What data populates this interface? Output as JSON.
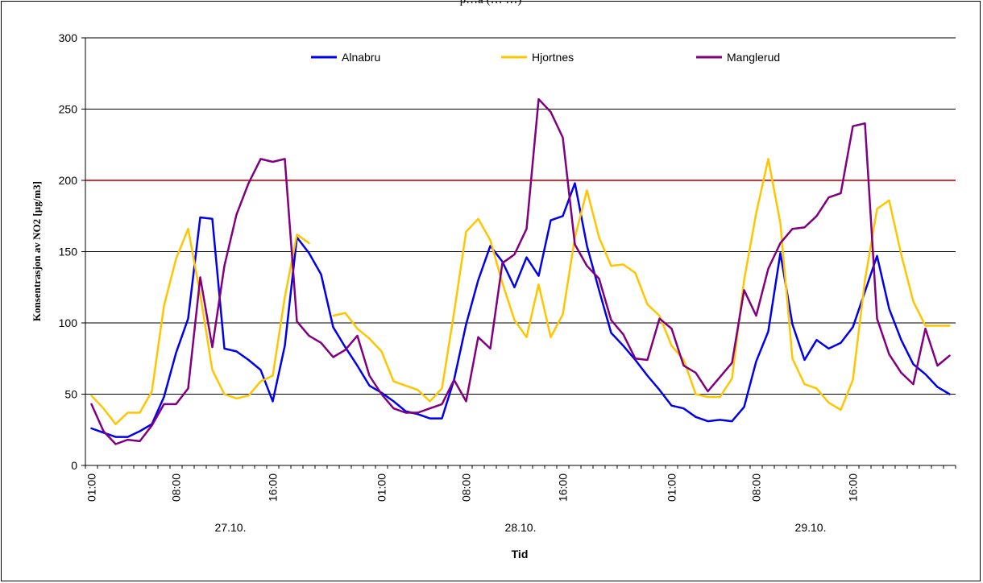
{
  "header": {
    "title_fragment": "p…a (… …)"
  },
  "chart_data": {
    "type": "line",
    "title": "",
    "xlabel": "Tid",
    "ylabel": "Konsentrasjon av NO2 [µg/m3]",
    "ylim": [
      0,
      300
    ],
    "yticks": [
      0,
      50,
      100,
      150,
      200,
      250,
      300
    ],
    "grid": true,
    "legend_position": "top",
    "x_tick_labels": [
      "01:00",
      "08:00",
      "16:00",
      "01:00",
      "08:00",
      "16:00",
      "01:00",
      "08:00",
      "16:00"
    ],
    "x_tick_index": [
      0,
      7,
      15,
      24,
      31,
      39,
      48,
      55,
      63
    ],
    "day_labels": [
      "27.10.",
      "28.10.",
      "29.10."
    ],
    "day_label_index": [
      11.5,
      35.5,
      59.5
    ],
    "x_count": 72,
    "threshold": {
      "value": 200,
      "color": "#E03030"
    },
    "series": [
      {
        "name": "Alnabru",
        "color": "#0000EE",
        "values": [
          26,
          23,
          20,
          20,
          24,
          29,
          48,
          79,
          103,
          174,
          173,
          82,
          80,
          74,
          67,
          45,
          84,
          160,
          149,
          134,
          97,
          83,
          70,
          56,
          51,
          45,
          38,
          36,
          33,
          33,
          60,
          99,
          130,
          154,
          143,
          125,
          146,
          133,
          172,
          175,
          198,
          154,
          123,
          93,
          84,
          74,
          63,
          53,
          42,
          40,
          34,
          31,
          32,
          31,
          41,
          73,
          94,
          149,
          99,
          74,
          88,
          82,
          86,
          97,
          122,
          147,
          110,
          88,
          71,
          64,
          55,
          50
        ]
      },
      {
        "name": "Hjortnes",
        "color": "#FFC600",
        "values": [
          49,
          40,
          29,
          37,
          37,
          52,
          112,
          145,
          166,
          120,
          67,
          50,
          47,
          49,
          59,
          63,
          118,
          162,
          156,
          null,
          105,
          107,
          96,
          89,
          80,
          59,
          56,
          53,
          45,
          54,
          107,
          164,
          173,
          158,
          128,
          102,
          90,
          127,
          90,
          106,
          160,
          193,
          160,
          140,
          141,
          135,
          113,
          105,
          84,
          74,
          50,
          48,
          48,
          61,
          130,
          177,
          215,
          170,
          75,
          57,
          54,
          44,
          39,
          60,
          130,
          180,
          186,
          148,
          115,
          98,
          98,
          98
        ]
      },
      {
        "name": "Manglerud",
        "color": "#800080",
        "values": [
          43,
          24,
          15,
          18,
          17,
          28,
          43,
          43,
          54,
          132,
          83,
          140,
          176,
          198,
          215,
          213,
          215,
          101,
          91,
          86,
          76,
          81,
          91,
          63,
          50,
          40,
          37,
          37,
          40,
          43,
          60,
          45,
          90,
          82,
          142,
          148,
          166,
          257,
          248,
          230,
          155,
          140,
          131,
          102,
          92,
          75,
          74,
          103,
          96,
          70,
          65,
          52,
          62,
          72,
          123,
          105,
          138,
          156,
          166,
          167,
          175,
          188,
          191,
          238,
          240,
          103,
          78,
          65,
          57,
          96,
          70,
          77
        ]
      }
    ]
  }
}
